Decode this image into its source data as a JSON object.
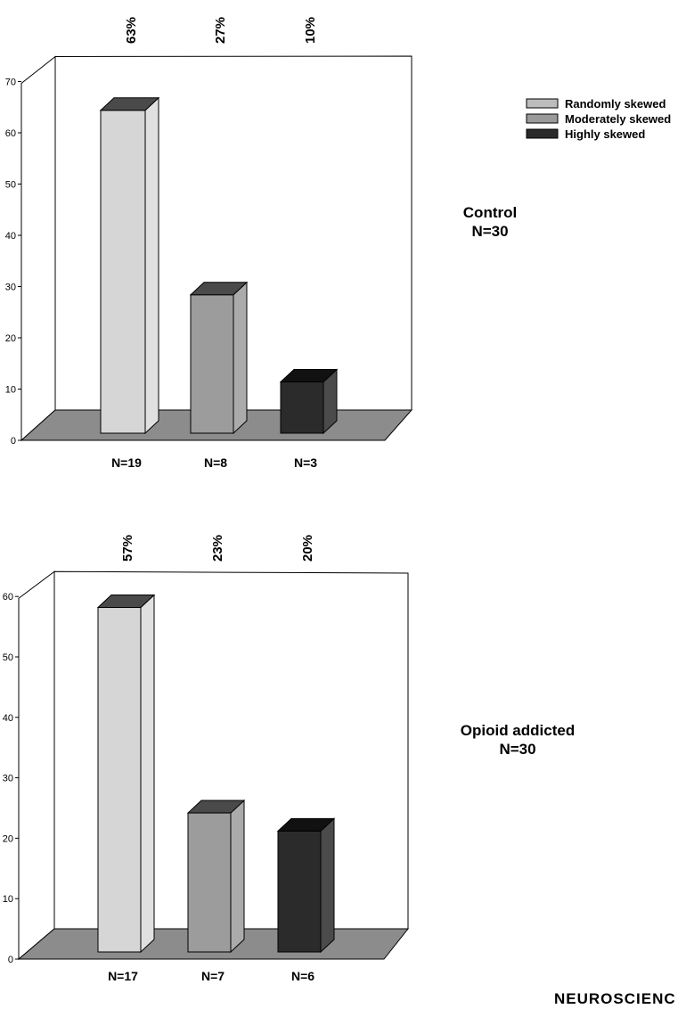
{
  "legend": {
    "position": "top-right",
    "items": [
      {
        "label": "Randomly skewed",
        "color": "#bdbdbd"
      },
      {
        "label": "Moderately skewed",
        "color": "#9a9a9a"
      },
      {
        "label": "Highly skewed",
        "color": "#2a2a2a"
      }
    ]
  },
  "watermark": "NEUROSCIENC",
  "chart_data": [
    {
      "type": "bar",
      "style": "3d",
      "group_label": "Control",
      "group_n": "N=30",
      "categories": [
        "Randomly skewed",
        "Moderately skewed",
        "Highly skewed"
      ],
      "values": [
        63,
        27,
        10
      ],
      "percent_labels": [
        "63%",
        "27%",
        "10%"
      ],
      "n_labels": [
        "N=19",
        "N=8",
        "N=3"
      ],
      "colors": [
        "#d6d6d6",
        "#9c9c9c",
        "#2b2b2b"
      ],
      "yticks": [
        "0",
        "10",
        "20",
        "30",
        "40",
        "50",
        "60",
        "70"
      ],
      "ylim": [
        0,
        70
      ]
    },
    {
      "type": "bar",
      "style": "3d",
      "group_label": "Opioid addicted",
      "group_n": "N=30",
      "categories": [
        "Randomly skewed",
        "Moderately skewed",
        "Highly skewed"
      ],
      "values": [
        57,
        23,
        20
      ],
      "percent_labels": [
        "57%",
        "23%",
        "20%"
      ],
      "n_labels": [
        "N=17",
        "N=7",
        "N=6"
      ],
      "colors": [
        "#d6d6d6",
        "#9c9c9c",
        "#2b2b2b"
      ],
      "yticks": [
        "0",
        "10",
        "20",
        "30",
        "40",
        "50",
        "60"
      ],
      "ylim": [
        0,
        60
      ]
    }
  ]
}
